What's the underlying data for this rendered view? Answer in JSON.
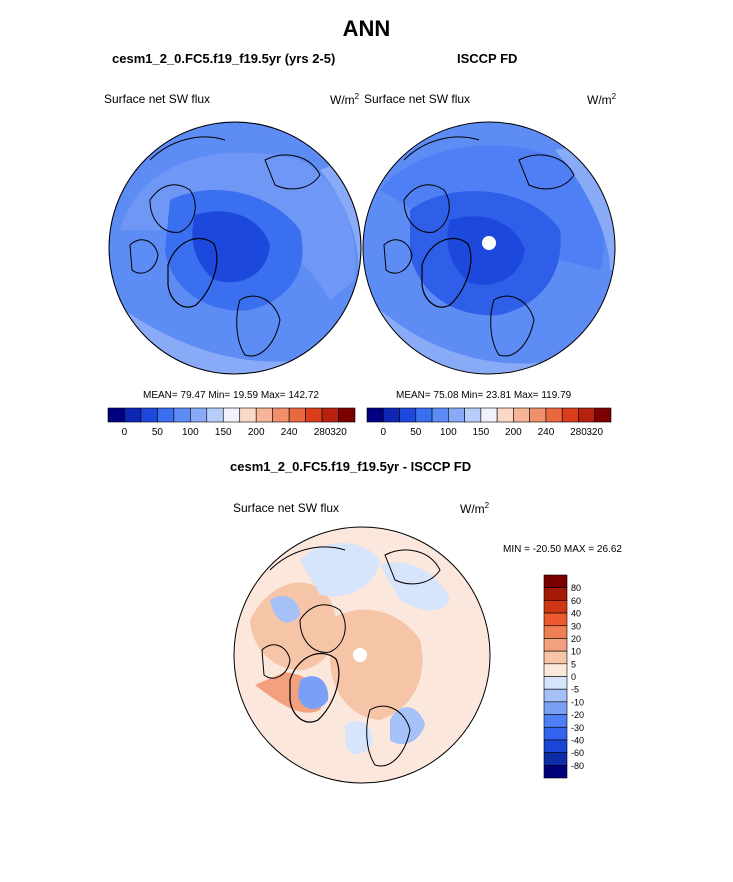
{
  "page": {
    "main_title": "ANN"
  },
  "panels": {
    "model": {
      "title": "cesm1_2_0.FC5.f19_f19.5yr (yrs 2-5)",
      "variable": "Surface net SW flux",
      "unit_base": "W/m",
      "unit_exp": "2",
      "stats": "MEAN=  79.47  Min=  19.59  Max= 142.72"
    },
    "obs": {
      "title": "ISCCP FD",
      "variable": "Surface net SW flux",
      "unit_base": "W/m",
      "unit_exp": "2",
      "stats": "MEAN=  75.08  Min=  23.81  Max= 119.79"
    },
    "diff": {
      "title": "cesm1_2_0.FC5.f19_f19.5yr - ISCCP FD",
      "variable": "Surface net SW flux",
      "unit_base": "W/m",
      "unit_exp": "2",
      "minmax": "MIN = -20.50 MAX =  26.62"
    }
  },
  "colors": {
    "abs_scale": [
      "#000080",
      "#0d27b4",
      "#1c49dc",
      "#3a6ff0",
      "#5d8cf5",
      "#88aaf7",
      "#b7cdfa",
      "#f1f1fb",
      "#fbd9c7",
      "#f6b498",
      "#f0906c",
      "#e9683f",
      "#d93f1c",
      "#b82010",
      "#7d0000"
    ],
    "diff_scale": [
      "#00007a",
      "#0f2ca8",
      "#1a46d6",
      "#3463ef",
      "#4f7ff4",
      "#7aa0f6",
      "#a6c1f8",
      "#d6e4fc",
      "#fbe7dc",
      "#f6c4a7",
      "#f3a07e",
      "#ef7f55",
      "#ec5a2d",
      "#cf3613",
      "#a41a06",
      "#7a0000"
    ],
    "land_outline": "#000000"
  },
  "chart_data": [
    {
      "type": "heatmap",
      "projection": "north-polar-stereographic",
      "title": "cesm1_2_0.FC5.f19_f19.5yr (yrs 2-5)",
      "variable": "Surface net SW flux",
      "units": "W/m2",
      "stats": {
        "mean": 79.47,
        "min": 19.59,
        "max": 142.72
      },
      "colorbar": {
        "levels": [
          0,
          25,
          50,
          75,
          100,
          125,
          150,
          175,
          200,
          220,
          240,
          260,
          280,
          300,
          320
        ],
        "tick_labels": [
          "0",
          "50",
          "100",
          "150",
          "200",
          "240",
          "280",
          "320"
        ]
      }
    },
    {
      "type": "heatmap",
      "projection": "north-polar-stereographic",
      "title": "ISCCP FD",
      "variable": "Surface net SW flux",
      "units": "W/m2",
      "stats": {
        "mean": 75.08,
        "min": 23.81,
        "max": 119.79
      },
      "colorbar": {
        "levels": [
          0,
          25,
          50,
          75,
          100,
          125,
          150,
          175,
          200,
          220,
          240,
          260,
          280,
          300,
          320
        ],
        "tick_labels": [
          "0",
          "50",
          "100",
          "150",
          "200",
          "240",
          "280",
          "320"
        ]
      }
    },
    {
      "type": "heatmap",
      "projection": "north-polar-stereographic",
      "title": "cesm1_2_0.FC5.f19_f19.5yr - ISCCP FD",
      "variable": "Surface net SW flux",
      "units": "W/m2",
      "stats": {
        "min": -20.5,
        "max": 26.62
      },
      "colorbar": {
        "levels": [
          -80,
          -60,
          -40,
          -30,
          -20,
          -10,
          -5,
          0,
          5,
          10,
          20,
          30,
          40,
          60,
          80
        ],
        "tick_labels": [
          "80",
          "60",
          "40",
          "30",
          "20",
          "10",
          "5",
          "0",
          "-5",
          "-10",
          "-20",
          "-30",
          "-40",
          "-60",
          "-80"
        ]
      }
    }
  ]
}
